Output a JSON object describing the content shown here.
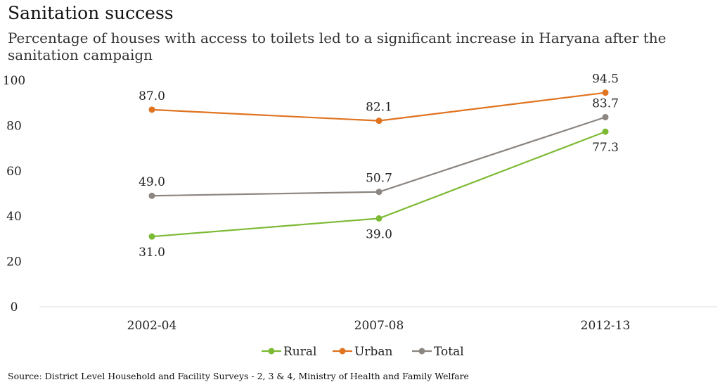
{
  "header": {
    "title": "Sanitation success",
    "subtitle": "Percentage of houses with access to toilets led to a significant increase in Haryana after the sanitation campaign"
  },
  "footer": {
    "source": "Source: District Level Household and Facility Surveys - 2, 3 & 4, Ministry of Health and Family Welfare"
  },
  "chart_data": {
    "type": "line",
    "title": "Sanitation success",
    "subtitle": "Percentage of houses with access to toilets led to a significant increase in Haryana after the sanitation campaign",
    "xlabel": "",
    "ylabel": "",
    "categories": [
      "2002-04",
      "2007-08",
      "2012-13"
    ],
    "ylim": [
      0,
      100
    ],
    "yticks": [
      0,
      20,
      40,
      60,
      80,
      100
    ],
    "ytick_labels": [
      "0",
      "20",
      "40",
      "60",
      "80",
      "100"
    ],
    "grid": false,
    "legend_position": "bottom",
    "series": [
      {
        "name": "Rural",
        "color": "#7dba34",
        "values": [
          31.0,
          39.0,
          77.3
        ],
        "labels": [
          "31.0",
          "39.0",
          "77.3"
        ],
        "label_position": "below"
      },
      {
        "name": "Urban",
        "color": "#e07320",
        "values": [
          87.0,
          82.1,
          94.5
        ],
        "labels": [
          "87.0",
          "82.1",
          "94.5"
        ],
        "label_position": "above"
      },
      {
        "name": "Total",
        "color": "#8c8580",
        "values": [
          49.0,
          50.7,
          83.7
        ],
        "labels": [
          "49.0",
          "50.7",
          "83.7"
        ],
        "label_position": "above"
      }
    ]
  }
}
